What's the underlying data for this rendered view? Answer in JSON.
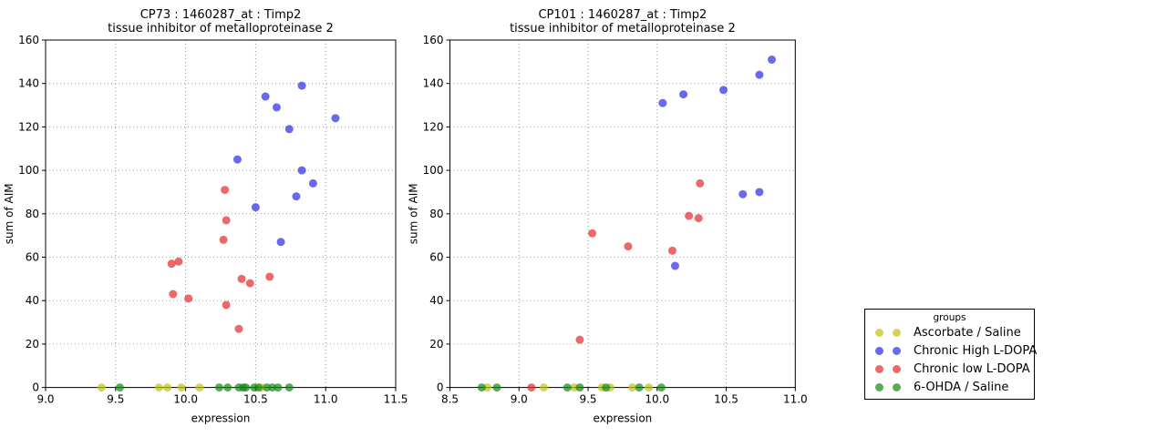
{
  "figure": {
    "background": "#ffffff",
    "text_color": "#000000",
    "grid_color": "#999999",
    "marker_opacity": 0.7
  },
  "legend": {
    "title": "groups",
    "entries": [
      {
        "label": "Ascorbate / Saline",
        "color": "#c2c214"
      },
      {
        "label": "Chronic High L-DOPA",
        "color": "#2a2ae6"
      },
      {
        "label": "Chronic low L-DOPA",
        "color": "#e62a2a"
      },
      {
        "label": "6-OHDA / Saline",
        "color": "#108a10"
      }
    ]
  },
  "chart_data": [
    {
      "type": "scatter",
      "title_lines": [
        "CP73 : 1460287_at : Timp2",
        "tissue inhibitor of metalloproteinase 2"
      ],
      "xlabel": "expression",
      "ylabel": "sum of AIM",
      "xlim": [
        9.0,
        11.5
      ],
      "ylim": [
        0,
        160
      ],
      "xticks": [
        9.0,
        9.5,
        10.0,
        10.5,
        11.0,
        11.5
      ],
      "xtick_labels": [
        "9.0",
        "9.5",
        "10.0",
        "10.5",
        "11.0",
        "11.5"
      ],
      "yticks": [
        0,
        20,
        40,
        60,
        80,
        100,
        120,
        140,
        160
      ],
      "ytick_labels": [
        "0",
        "20",
        "40",
        "60",
        "80",
        "100",
        "120",
        "140",
        "160"
      ],
      "grid": true,
      "legend_position": "none",
      "series": [
        {
          "name": "Ascorbate / Saline",
          "color": "#c2c214",
          "points": [
            [
              9.4,
              0
            ],
            [
              9.81,
              0
            ],
            [
              9.87,
              0
            ],
            [
              9.97,
              0
            ],
            [
              10.1,
              0
            ],
            [
              10.54,
              0
            ]
          ]
        },
        {
          "name": "Chronic High L-DOPA",
          "color": "#2a2ae6",
          "points": [
            [
              10.37,
              105
            ],
            [
              10.5,
              83
            ],
            [
              10.57,
              134
            ],
            [
              10.65,
              129
            ],
            [
              10.68,
              67
            ],
            [
              10.74,
              119
            ],
            [
              10.79,
              88
            ],
            [
              10.83,
              100
            ],
            [
              10.83,
              139
            ],
            [
              10.91,
              94
            ],
            [
              11.07,
              124
            ]
          ]
        },
        {
          "name": "Chronic low L-DOPA",
          "color": "#e62a2a",
          "points": [
            [
              9.9,
              57
            ],
            [
              9.91,
              43
            ],
            [
              9.95,
              58
            ],
            [
              10.02,
              41
            ],
            [
              10.27,
              68
            ],
            [
              10.28,
              91
            ],
            [
              10.29,
              38
            ],
            [
              10.29,
              77
            ],
            [
              10.38,
              27
            ],
            [
              10.4,
              50
            ],
            [
              10.46,
              48
            ],
            [
              10.6,
              51
            ]
          ]
        },
        {
          "name": "6-OHDA / Saline",
          "color": "#108a10",
          "points": [
            [
              9.53,
              0
            ],
            [
              10.24,
              0
            ],
            [
              10.3,
              0
            ],
            [
              10.38,
              0
            ],
            [
              10.41,
              0
            ],
            [
              10.43,
              0
            ],
            [
              10.49,
              0
            ],
            [
              10.52,
              0
            ],
            [
              10.58,
              0
            ],
            [
              10.62,
              0
            ],
            [
              10.66,
              0
            ],
            [
              10.74,
              0
            ]
          ]
        }
      ]
    },
    {
      "type": "scatter",
      "title_lines": [
        "CP101 : 1460287_at : Timp2",
        "tissue inhibitor of metalloproteinase 2"
      ],
      "xlabel": "expression",
      "ylabel": "sum of AIM",
      "xlim": [
        8.5,
        11.0
      ],
      "ylim": [
        0,
        160
      ],
      "xticks": [
        8.5,
        9.0,
        9.5,
        10.0,
        10.5,
        11.0
      ],
      "xtick_labels": [
        "8.5",
        "9.0",
        "9.5",
        "10.0",
        "10.5",
        "11.0"
      ],
      "yticks": [
        0,
        20,
        40,
        60,
        80,
        100,
        120,
        140,
        160
      ],
      "ytick_labels": [
        "0",
        "20",
        "40",
        "60",
        "80",
        "100",
        "120",
        "140",
        "160"
      ],
      "grid": true,
      "legend_position": "none",
      "series": [
        {
          "name": "Ascorbate / Saline",
          "color": "#c2c214",
          "points": [
            [
              8.77,
              0
            ],
            [
              9.18,
              0
            ],
            [
              9.4,
              0
            ],
            [
              9.6,
              0
            ],
            [
              9.66,
              0
            ],
            [
              9.82,
              0
            ],
            [
              9.94,
              0
            ]
          ]
        },
        {
          "name": "Chronic High L-DOPA",
          "color": "#2a2ae6",
          "points": [
            [
              10.04,
              131
            ],
            [
              10.13,
              56
            ],
            [
              10.19,
              135
            ],
            [
              10.48,
              137
            ],
            [
              10.62,
              89
            ],
            [
              10.74,
              90
            ],
            [
              10.74,
              144
            ],
            [
              10.83,
              151
            ]
          ]
        },
        {
          "name": "Chronic low L-DOPA",
          "color": "#e62a2a",
          "points": [
            [
              9.09,
              0
            ],
            [
              9.44,
              22
            ],
            [
              9.53,
              71
            ],
            [
              9.79,
              65
            ],
            [
              10.11,
              63
            ],
            [
              10.23,
              79
            ],
            [
              10.3,
              78
            ],
            [
              10.31,
              94
            ]
          ]
        },
        {
          "name": "6-OHDA / Saline",
          "color": "#108a10",
          "points": [
            [
              8.73,
              0
            ],
            [
              8.84,
              0
            ],
            [
              9.35,
              0
            ],
            [
              9.44,
              0
            ],
            [
              9.63,
              0
            ],
            [
              9.87,
              0
            ],
            [
              10.03,
              0
            ]
          ]
        }
      ]
    }
  ]
}
